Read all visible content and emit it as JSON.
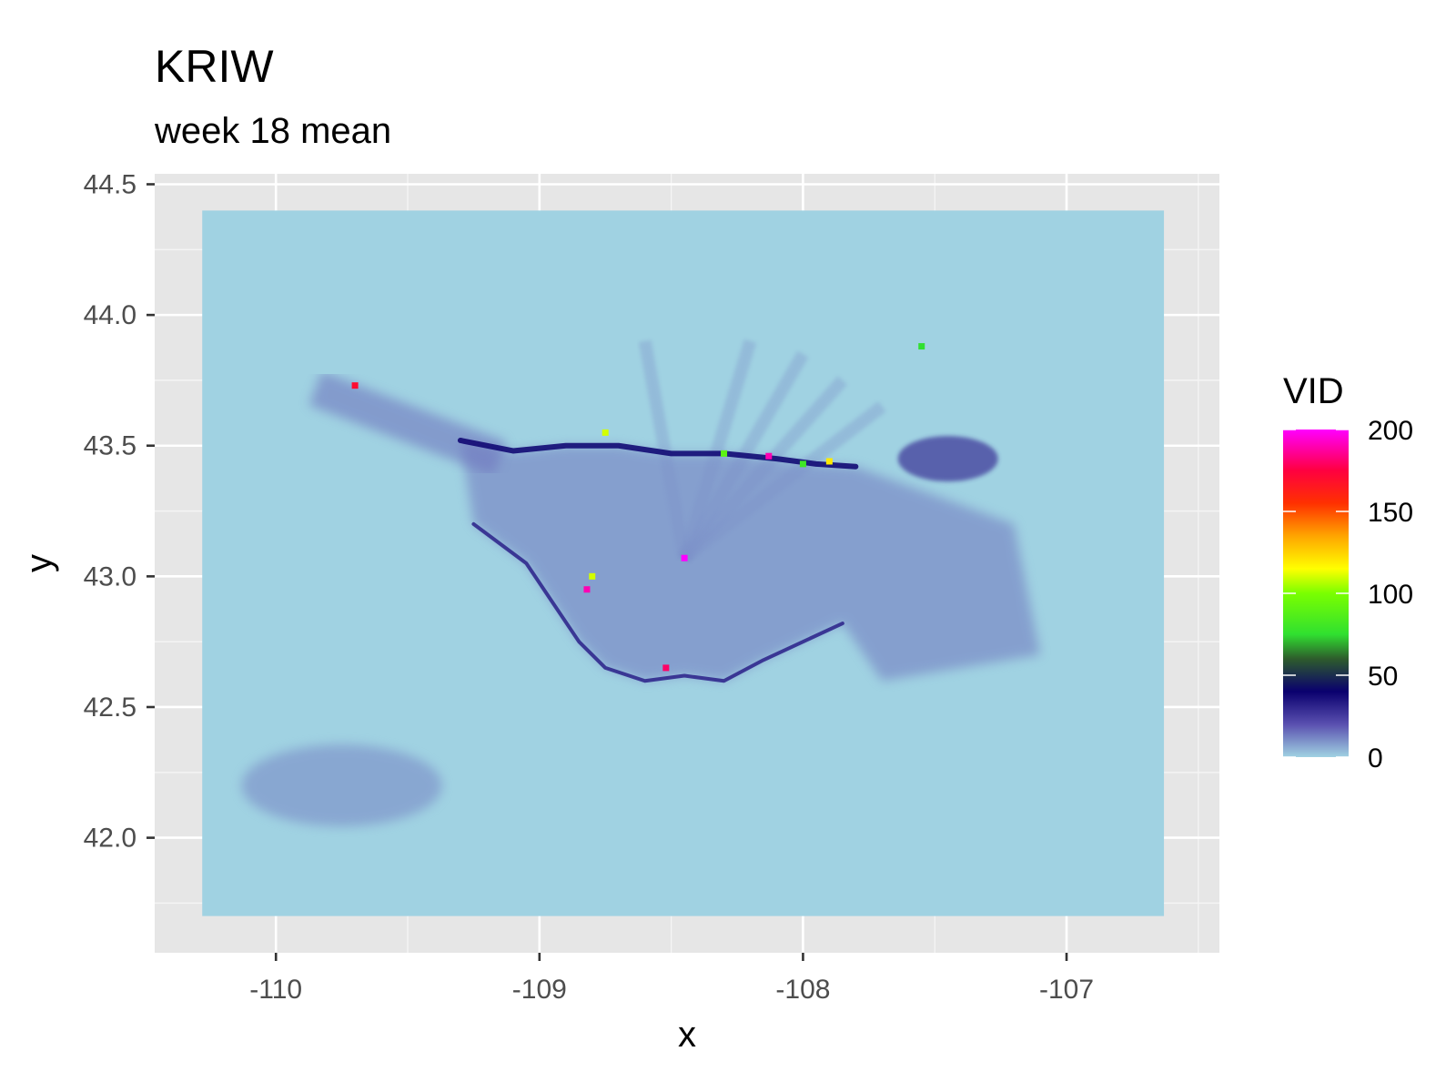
{
  "chart_data": {
    "type": "heatmap",
    "title": "KRIW",
    "subtitle": "week 18 mean",
    "xlabel": "x",
    "ylabel": "y",
    "xlim": [
      -110.46,
      -106.42
    ],
    "ylim": [
      41.56,
      44.54
    ],
    "x_ticks": [
      -110,
      -109,
      -108,
      -107
    ],
    "x_tick_labels": [
      "-110",
      "-109",
      "-108",
      "-107"
    ],
    "y_ticks": [
      42.0,
      42.5,
      43.0,
      43.5,
      44.0,
      44.5
    ],
    "y_tick_labels": [
      "42.0",
      "42.5",
      "43.0",
      "43.5",
      "44.0",
      "44.5"
    ],
    "grid": true,
    "panel_background": "#e6e6e6",
    "raster_extent": {
      "x": [
        -110.28,
        -106.63
      ],
      "y": [
        41.7,
        44.4
      ]
    },
    "legend": {
      "title": "VID",
      "position": "right",
      "range": [
        0,
        200
      ],
      "breaks": [
        0,
        50,
        100,
        150,
        200
      ],
      "break_labels": [
        "0",
        "50",
        "100",
        "150",
        "200"
      ],
      "gradient": [
        {
          "value": 0,
          "color": "#a0d2e2"
        },
        {
          "value": 20,
          "color": "#5a50b0"
        },
        {
          "value": 40,
          "color": "#0a006e"
        },
        {
          "value": 60,
          "color": "#2e5c2c"
        },
        {
          "value": 75,
          "color": "#30e030"
        },
        {
          "value": 100,
          "color": "#7aff00"
        },
        {
          "value": 115,
          "color": "#ffff00"
        },
        {
          "value": 135,
          "color": "#ffa500"
        },
        {
          "value": 155,
          "color": "#ff3000"
        },
        {
          "value": 175,
          "color": "#ff0040"
        },
        {
          "value": 200,
          "color": "#ff00ff"
        }
      ]
    },
    "features": {
      "ridge_line": [
        [
          -109.3,
          43.52
        ],
        [
          -109.1,
          43.48
        ],
        [
          -108.9,
          43.5
        ],
        [
          -108.7,
          43.5
        ],
        [
          -108.5,
          43.47
        ],
        [
          -108.3,
          43.47
        ],
        [
          -108.1,
          43.45
        ],
        [
          -107.95,
          43.43
        ],
        [
          -107.8,
          43.42
        ]
      ],
      "ne_blob": {
        "x": -107.45,
        "y": 43.45,
        "value": 28
      },
      "sw_edge": [
        [
          -109.25,
          43.2
        ],
        [
          -109.05,
          43.05
        ],
        [
          -108.95,
          42.9
        ],
        [
          -108.85,
          42.75
        ],
        [
          -108.75,
          42.65
        ],
        [
          -108.6,
          42.6
        ],
        [
          -108.45,
          42.62
        ],
        [
          -108.3,
          42.6
        ],
        [
          -108.15,
          42.68
        ],
        [
          -108.0,
          42.75
        ],
        [
          -107.85,
          42.82
        ]
      ],
      "hotspots": [
        {
          "x": -108.45,
          "y": 43.07,
          "value": 200
        },
        {
          "x": -108.52,
          "y": 42.65,
          "value": 180
        },
        {
          "x": -108.13,
          "y": 43.46,
          "value": 190
        },
        {
          "x": -108.0,
          "y": 43.43,
          "value": 80
        },
        {
          "x": -108.3,
          "y": 43.47,
          "value": 90
        },
        {
          "x": -108.75,
          "y": 43.55,
          "value": 110
        },
        {
          "x": -107.55,
          "y": 43.88,
          "value": 75
        },
        {
          "x": -109.7,
          "y": 43.73,
          "value": 170
        },
        {
          "x": -108.82,
          "y": 42.95,
          "value": 190
        },
        {
          "x": -107.9,
          "y": 43.44,
          "value": 120
        },
        {
          "x": -108.8,
          "y": 43.0,
          "value": 110
        }
      ]
    }
  }
}
